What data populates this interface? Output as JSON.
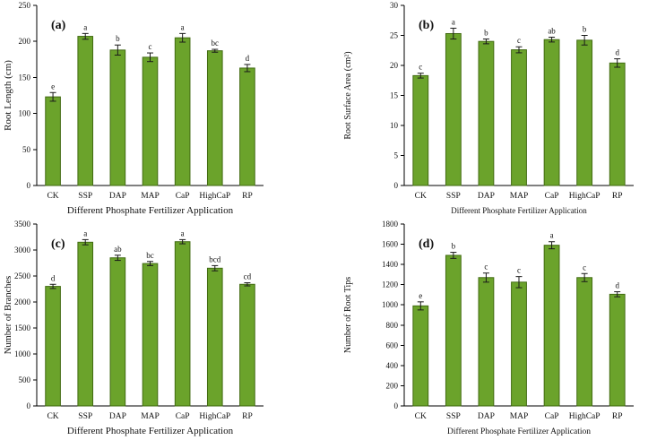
{
  "figure": {
    "background": "#ffffff",
    "bar_fill": "#6ba32b",
    "bar_stroke": "#426b12",
    "error_color": "#1a1a1a",
    "axis_color": "#000000",
    "panel_labels": [
      "(a)",
      "(b)",
      "(c)",
      "(d)"
    ]
  },
  "chart_data": [
    {
      "type": "bar",
      "panel_label": "(a)",
      "title": "",
      "xlabel": "Different Phosphate Fertilizer Application",
      "ylabel": "Root Length (cm)",
      "categories": [
        "CK",
        "SSP",
        "DAP",
        "MAP",
        "CaP",
        "HighCaP",
        "RP"
      ],
      "values": [
        123,
        207,
        188,
        178,
        205,
        187,
        163
      ],
      "errors": [
        6,
        4,
        7,
        6,
        6,
        2,
        5
      ],
      "sig_letters": [
        "e",
        "a",
        "b",
        "c",
        "a",
        "bc",
        "d"
      ],
      "ylim": [
        0,
        250
      ],
      "ytick_step": 50,
      "grid": false,
      "legend": "none"
    },
    {
      "type": "bar",
      "panel_label": "(b)",
      "title": "",
      "xlabel": "Different Phosphate Fertilizer Application",
      "ylabel": "Root Surface Area (cm²)",
      "categories": [
        "CK",
        "SSP",
        "DAP",
        "MAP",
        "CaP",
        "HighCaP",
        "RP"
      ],
      "values": [
        18.3,
        25.3,
        24.0,
        22.6,
        24.3,
        24.2,
        20.4
      ],
      "errors": [
        0.4,
        0.9,
        0.4,
        0.5,
        0.4,
        0.8,
        0.7
      ],
      "sig_letters": [
        "c",
        "a",
        "b",
        "c",
        "ab",
        "b",
        "d"
      ],
      "ylim": [
        0,
        30
      ],
      "ytick_step": 5,
      "grid": false,
      "legend": "none"
    },
    {
      "type": "bar",
      "panel_label": "(c)",
      "title": "",
      "xlabel": "Different Phosphate Fertilizer Application",
      "ylabel": "Number of Branches",
      "categories": [
        "CK",
        "SSP",
        "DAP",
        "MAP",
        "CaP",
        "HighCaP",
        "RP"
      ],
      "values": [
        2300,
        3150,
        2850,
        2740,
        3160,
        2650,
        2340
      ],
      "errors": [
        40,
        50,
        50,
        40,
        40,
        50,
        30
      ],
      "sig_letters": [
        "d",
        "a",
        "ab",
        "bc",
        "a",
        "bcd",
        "cd"
      ],
      "ylim": [
        0,
        3500
      ],
      "ytick_step": 500,
      "grid": false,
      "legend": "none"
    },
    {
      "type": "bar",
      "panel_label": "(d)",
      "title": "",
      "xlabel": "Different Phosphate Fertilizer Application",
      "ylabel": "Number of Root Tips",
      "categories": [
        "CK",
        "SSP",
        "DAP",
        "MAP",
        "CaP",
        "HighCaP",
        "RP"
      ],
      "values": [
        990,
        1490,
        1270,
        1225,
        1590,
        1270,
        1105
      ],
      "errors": [
        40,
        30,
        45,
        55,
        35,
        40,
        25
      ],
      "sig_letters": [
        "e",
        "b",
        "c",
        "c",
        "a",
        "c",
        "d"
      ],
      "ylim": [
        0,
        1800
      ],
      "ytick_step": 200,
      "grid": false,
      "legend": "none"
    }
  ]
}
